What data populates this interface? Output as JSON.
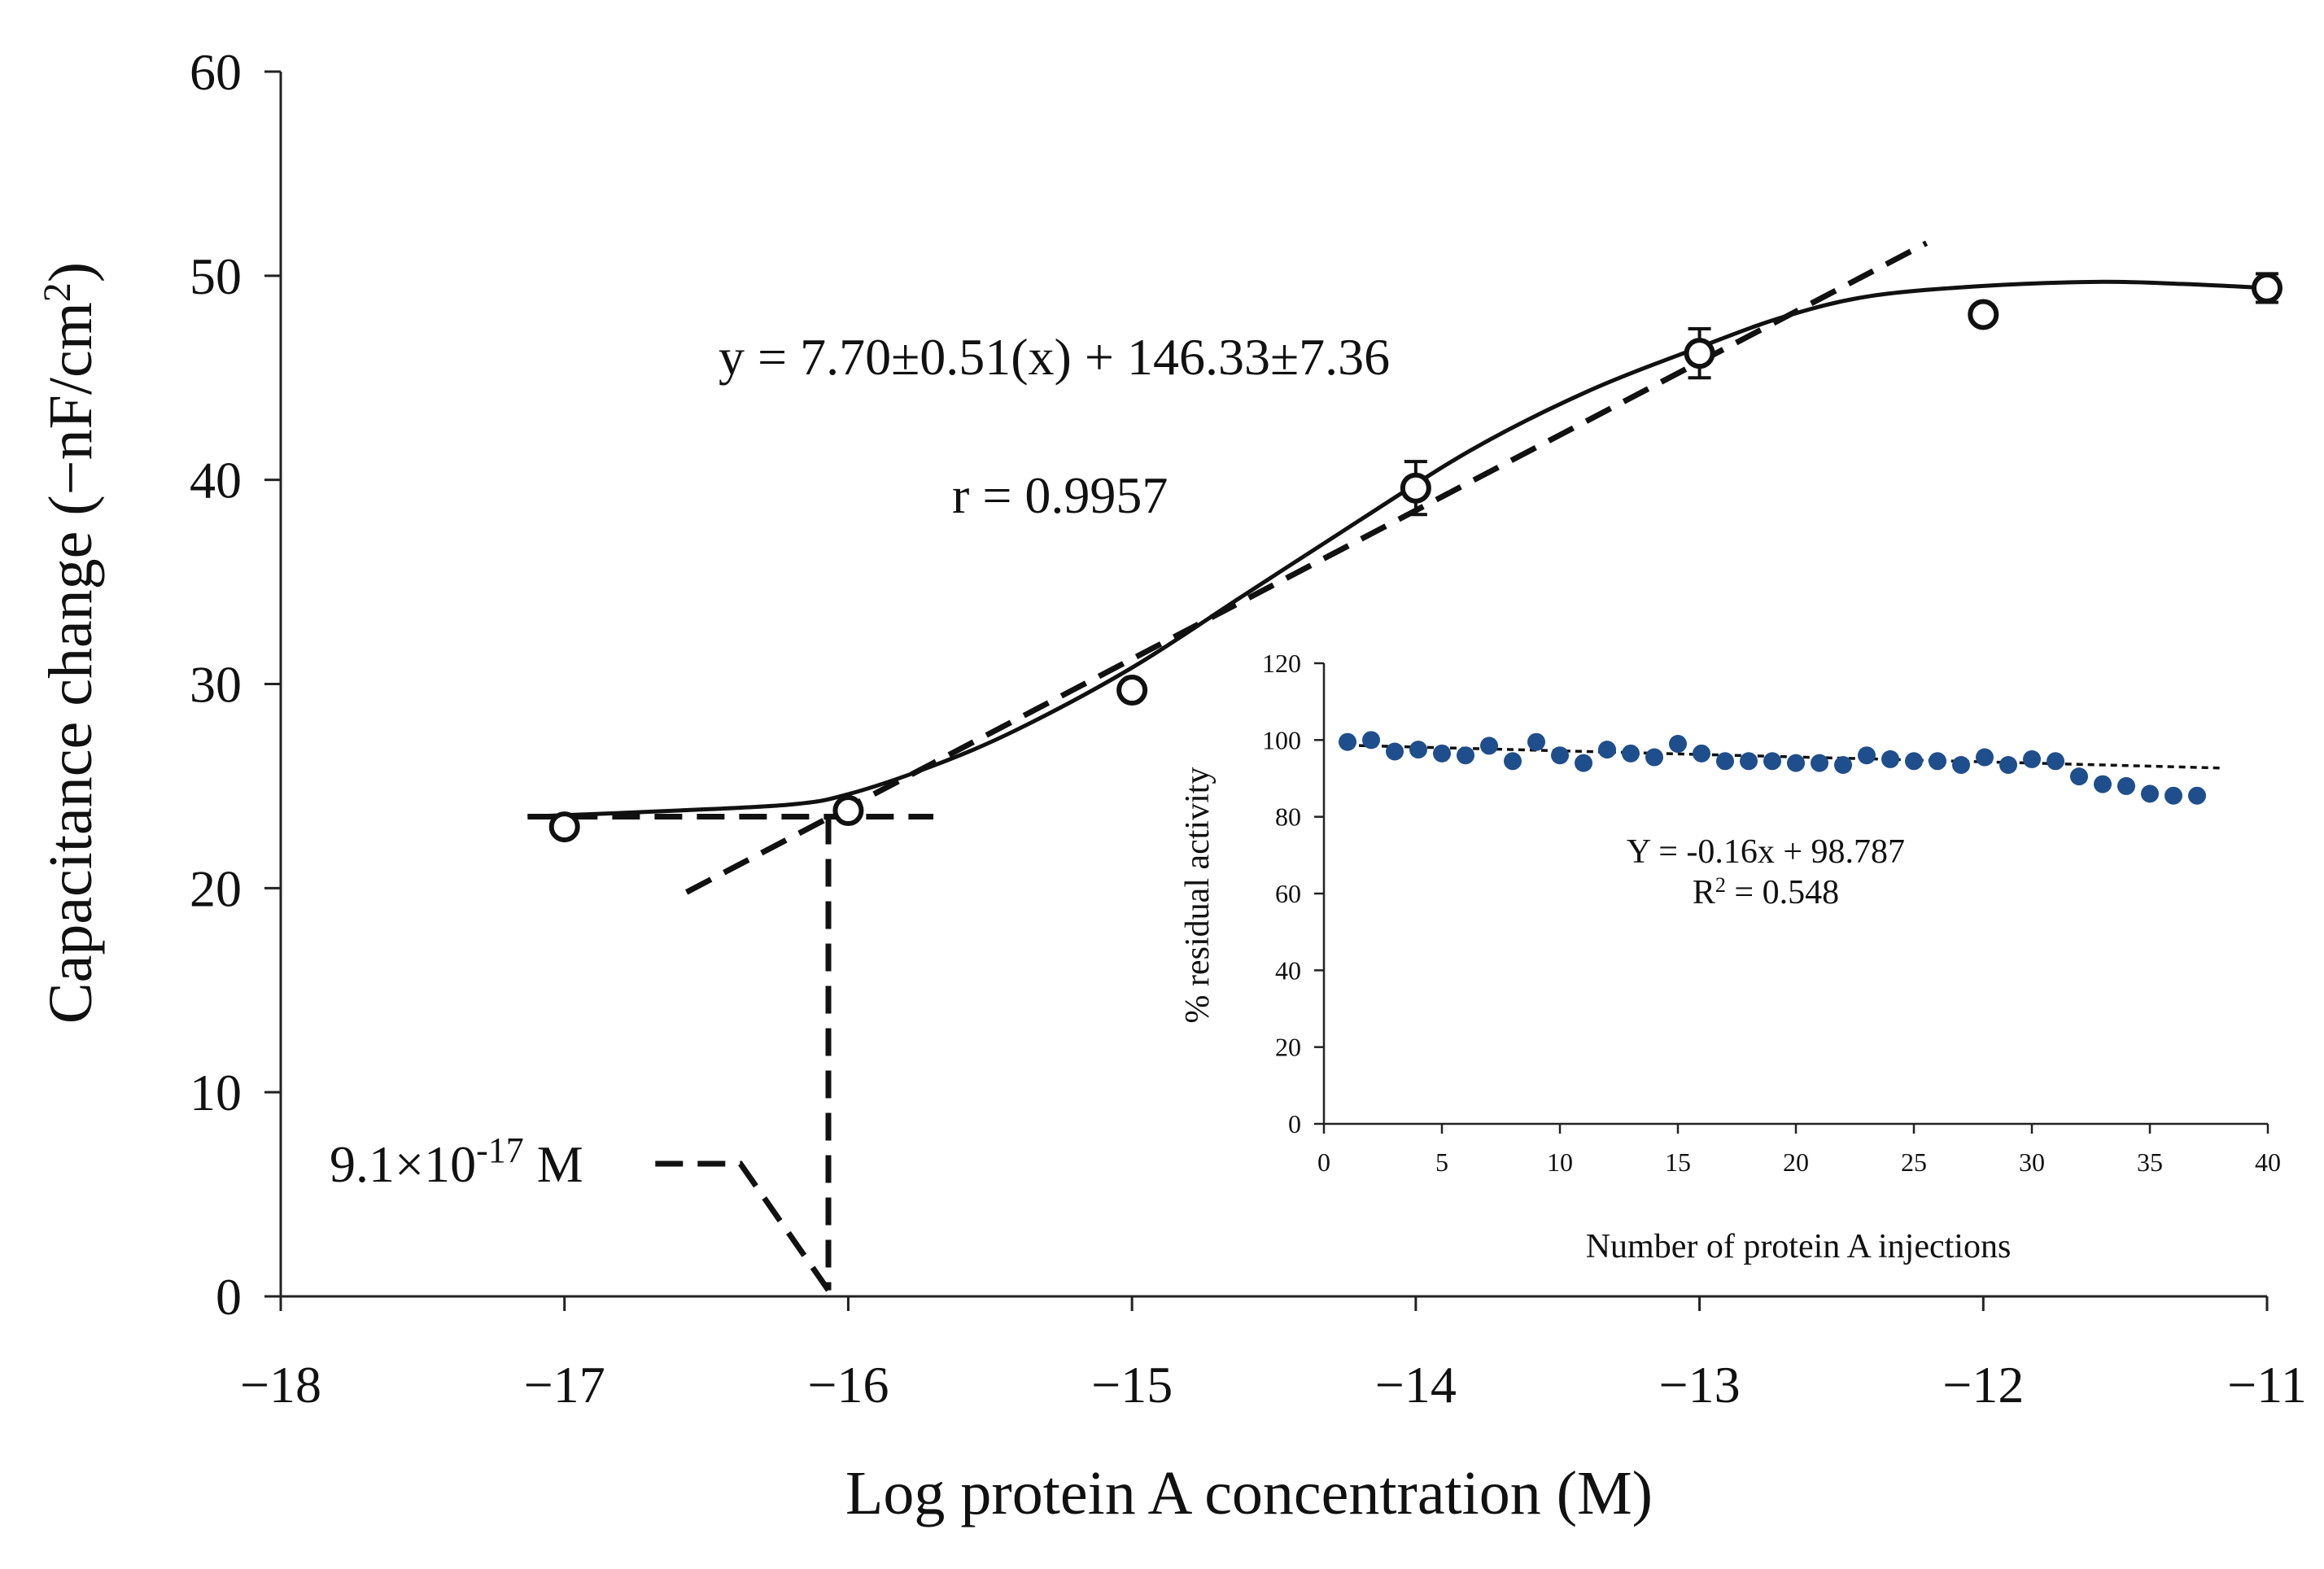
{
  "chart_data": [
    {
      "type": "scatter",
      "xlabel": "Log protein A concentration (M)",
      "ylabel_main": "Capacitance change (−nF/cm",
      "ylabel_sup": "2",
      "ylabel_end": ")",
      "xlim": [
        -18,
        -11
      ],
      "ylim": [
        0,
        60
      ],
      "xticks": [
        -18,
        -17,
        -16,
        -15,
        -14,
        -13,
        -12,
        -11
      ],
      "xtick_labels": [
        "−18",
        "−17",
        "−16",
        "−15",
        "−14",
        "−13",
        "−12",
        "−11"
      ],
      "yticks": [
        0,
        10,
        20,
        30,
        40,
        50,
        60
      ],
      "ytick_labels": [
        "0",
        "10",
        "20",
        "30",
        "40",
        "50",
        "60"
      ],
      "grid": false,
      "series": [
        {
          "marker": "open-circle",
          "x": [
            -17,
            -16,
            -15,
            -14,
            -13,
            -12,
            -11
          ],
          "y": [
            23.0,
            23.8,
            29.7,
            39.6,
            46.2,
            48.1,
            49.4
          ],
          "error": [
            0,
            0,
            0,
            1.3,
            1.2,
            0,
            0.7
          ]
        }
      ],
      "fit_curve": {
        "style": "solid",
        "x": [
          -17.13,
          -16.6,
          -16.2,
          -16.0,
          -15.7,
          -15.4,
          -15.0,
          -14.6,
          -14.2,
          -13.8,
          -13.4,
          -13.0,
          -12.7,
          -12.4,
          -12.0,
          -11.6,
          -11.3,
          -11.0
        ],
        "y": [
          23.5,
          23.8,
          24.1,
          24.6,
          26.0,
          27.8,
          30.8,
          34.4,
          38.0,
          41.5,
          44.3,
          46.5,
          48.0,
          49.0,
          49.5,
          49.7,
          49.6,
          49.4
        ]
      },
      "linear_fit": {
        "style": "dashed",
        "x": [
          -16.57,
          -12.2
        ],
        "y": [
          19.8,
          51.6
        ],
        "equation": "y = 7.70±0.51(x) + 146.33±7.36",
        "r_text": "r = 0.9957"
      },
      "lod_guides": {
        "style": "dashed",
        "horizontal": {
          "x": [
            -17.13,
            -15.7
          ],
          "y": 23.5
        },
        "vertical": {
          "x": -16.07,
          "y": [
            23.5,
            0.3
          ]
        },
        "leader": [
          [
            -16.07,
            0.3
          ],
          [
            -16.38,
            6.5
          ],
          [
            -16.72,
            6.5
          ]
        ]
      },
      "lod_label": {
        "base": "9.1×10",
        "exponent": "-17",
        "unit": " M"
      }
    },
    {
      "type": "scatter",
      "inset": true,
      "xlabel": "Number of protein A injections",
      "ylabel": "% residual activity",
      "xlim": [
        0,
        40
      ],
      "ylim": [
        0,
        120
      ],
      "xticks": [
        0,
        5,
        10,
        15,
        20,
        25,
        30,
        35,
        40
      ],
      "xtick_labels": [
        "0",
        "5",
        "10",
        "15",
        "20",
        "25",
        "30",
        "35",
        "40"
      ],
      "yticks": [
        0,
        20,
        40,
        60,
        80,
        100,
        120
      ],
      "ytick_labels": [
        "0",
        "20",
        "40",
        "60",
        "80",
        "100",
        "120"
      ],
      "grid": false,
      "marker_color": "#1f4e8c",
      "series": [
        {
          "marker": "filled-circle",
          "x": [
            1,
            2,
            3,
            4,
            5,
            6,
            7,
            8,
            9,
            10,
            11,
            12,
            13,
            14,
            15,
            16,
            17,
            18,
            19,
            20,
            21,
            22,
            23,
            24,
            25,
            26,
            27,
            28,
            29,
            30,
            31,
            32,
            33,
            34,
            35,
            36,
            37
          ],
          "y": [
            99.5,
            100,
            97,
            97.5,
            96.5,
            96,
            98.5,
            94.5,
            99.5,
            96,
            94,
            97.5,
            96.5,
            95.5,
            99,
            96.5,
            94.5,
            94.5,
            94.5,
            94,
            94,
            93.5,
            96,
            95,
            94.5,
            94.5,
            93.5,
            95.5,
            93.5,
            95,
            94.5,
            90.5,
            88.5,
            88,
            86,
            85.5,
            85.5
          ]
        }
      ],
      "trendline": {
        "style": "dotted",
        "slope": -0.16,
        "intercept": 98.787,
        "x": [
          1,
          38
        ],
        "equation": "Y = -0.16x + 98.787",
        "r2_base": "R",
        "r2_sup": "2",
        "r2_end": " = 0.548"
      }
    }
  ]
}
